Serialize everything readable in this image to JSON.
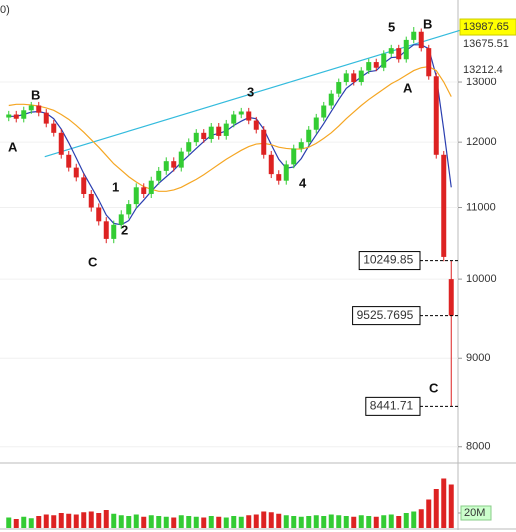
{
  "chart_data": {
    "type": "candlestick",
    "log_scale": true,
    "corner_text": "0)",
    "ylim": [
      7860,
      14500
    ],
    "yticks": [
      8000,
      9000,
      10000,
      11000,
      12000,
      13000
    ],
    "open": [
      12400,
      12450,
      12380,
      12520,
      12600,
      12480,
      12300,
      12150,
      11800,
      11600,
      11450,
      11200,
      11000,
      10800,
      10550,
      10750,
      10900,
      11050,
      11300,
      11200,
      11400,
      11550,
      11700,
      11600,
      11850,
      12000,
      12150,
      12050,
      12250,
      12100,
      12300,
      12450,
      12500,
      12350,
      12200,
      11800,
      11500,
      11400,
      11650,
      11900,
      12000,
      12200,
      12400,
      12600,
      12800,
      13000,
      13150,
      13000,
      13200,
      13350,
      13250,
      13500,
      13600,
      13400,
      13750,
      13900,
      13600,
      13100,
      11800,
      10000
    ],
    "high": [
      12510,
      12510,
      12580,
      12660,
      12660,
      12540,
      12360,
      12210,
      11860,
      11660,
      11510,
      11260,
      11060,
      10860,
      10810,
      10960,
      11110,
      11360,
      11360,
      11460,
      11610,
      11760,
      11760,
      11910,
      12060,
      12210,
      12210,
      12310,
      12310,
      12360,
      12510,
      12560,
      12560,
      12410,
      12260,
      11860,
      11560,
      11710,
      11960,
      12060,
      12260,
      12460,
      12660,
      12860,
      13060,
      13210,
      13210,
      13260,
      13410,
      13410,
      13560,
      13660,
      13660,
      13810,
      13987.65,
      13960,
      13660,
      13160,
      11860,
      10249.85
    ],
    "low": [
      12340,
      12320,
      12320,
      12460,
      12420,
      12240,
      12090,
      11740,
      11540,
      11390,
      11140,
      10940,
      10740,
      10490,
      10490,
      10690,
      10840,
      10990,
      11140,
      11140,
      11340,
      11490,
      11540,
      11540,
      11790,
      11940,
      11990,
      11990,
      12040,
      12040,
      12240,
      12390,
      12290,
      12140,
      11740,
      11440,
      11340,
      11340,
      11590,
      11840,
      11940,
      12140,
      12340,
      12540,
      12740,
      12940,
      12940,
      12940,
      13140,
      13190,
      13190,
      13440,
      13340,
      13340,
      13690,
      13540,
      13040,
      11740,
      10240,
      8441.71
    ],
    "close": [
      12450,
      12380,
      12520,
      12600,
      12480,
      12300,
      12150,
      11800,
      11600,
      11450,
      11200,
      11000,
      10800,
      10550,
      10750,
      10900,
      11050,
      11300,
      11200,
      11400,
      11550,
      11700,
      11600,
      11850,
      12000,
      12150,
      12050,
      12250,
      12100,
      12300,
      12450,
      12500,
      12350,
      12200,
      11800,
      11500,
      11400,
      11650,
      11900,
      12000,
      12200,
      12400,
      12600,
      12800,
      13000,
      13150,
      13000,
      13200,
      13350,
      13250,
      13500,
      13600,
      13400,
      13750,
      13900,
      13600,
      13100,
      11800,
      10300,
      9525.7695
    ],
    "up_color": "#33cc33",
    "down_color": "#dd2222",
    "overlays": [
      {
        "color": "#2b3fb0",
        "values": [
          12420,
          12420,
          12450,
          12490,
          12500,
          12470,
          12380,
          12210,
          11990,
          11750,
          11510,
          11310,
          11110,
          10890,
          10770,
          10750,
          10810,
          10990,
          11110,
          11240,
          11360,
          11460,
          11560,
          11680,
          11790,
          11900,
          12010,
          12110,
          12140,
          12180,
          12270,
          12340,
          12400,
          12380,
          12210,
          11960,
          11730,
          11590,
          11610,
          11740,
          11940,
          12120,
          12300,
          12500,
          12700,
          12890,
          12990,
          13090,
          13180,
          13200,
          13330,
          13430,
          13440,
          13560,
          13660,
          13660,
          13590,
          13100,
          12200,
          11300
        ]
      },
      {
        "color": "#f5a623",
        "values": [
          12600,
          12620,
          12620,
          12610,
          12590,
          12560,
          12520,
          12450,
          12370,
          12270,
          12160,
          12040,
          11920,
          11790,
          11660,
          11560,
          11460,
          11380,
          11310,
          11270,
          11240,
          11240,
          11260,
          11300,
          11360,
          11420,
          11490,
          11570,
          11650,
          11730,
          11800,
          11870,
          11930,
          11970,
          11980,
          11960,
          11920,
          11900,
          11890,
          11890,
          11920,
          11980,
          12060,
          12150,
          12260,
          12380,
          12490,
          12600,
          12700,
          12790,
          12880,
          12970,
          13040,
          13120,
          13200,
          13250,
          13270,
          13200,
          13000,
          12750
        ]
      }
    ],
    "trendline": {
      "color": "#33bbdd",
      "x": [
        4.8,
        60.5
      ],
      "values": [
        11770,
        13940
      ]
    },
    "price_labels": [
      {
        "value": 13987.65,
        "kind": "axis",
        "color": "#000000",
        "background": "#ffff00"
      },
      {
        "value": 13675.51,
        "kind": "axis",
        "color": "#e060a0",
        "background": "#ffffff"
      },
      {
        "value": 13212.4,
        "kind": "axis",
        "color": "#000000",
        "background": "#ffffff"
      },
      {
        "value": 10249.85,
        "kind": "box",
        "color": "#000000",
        "background": "#ffffff"
      },
      {
        "value": 9525.7695,
        "kind": "box",
        "color": "#000000",
        "background": "#ffffff"
      },
      {
        "value": 8441.71,
        "kind": "box",
        "color": "#000000",
        "background": "#ffffff"
      }
    ],
    "wave_labels": [
      "B",
      "A",
      "1",
      "2",
      "C",
      "3",
      "4",
      "5",
      "B",
      "A",
      "C"
    ],
    "volume": [
      14,
      12,
      15,
      13,
      16,
      18,
      17,
      20,
      19,
      18,
      21,
      22,
      20,
      24,
      19,
      17,
      16,
      18,
      15,
      17,
      16,
      15,
      14,
      17,
      16,
      15,
      14,
      16,
      15,
      14,
      16,
      15,
      17,
      18,
      22,
      21,
      19,
      17,
      16,
      15,
      16,
      17,
      16,
      18,
      17,
      16,
      15,
      17,
      16,
      15,
      17,
      18,
      16,
      20,
      22,
      25,
      38,
      52,
      66,
      58
    ],
    "vlim": [
      0,
      80
    ],
    "vticks": [
      {
        "value": 20,
        "label": "20M"
      }
    ]
  }
}
